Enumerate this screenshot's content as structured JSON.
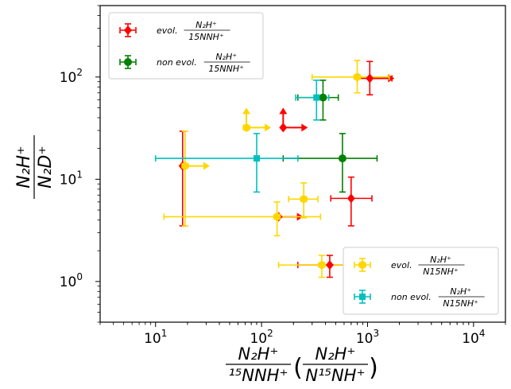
{
  "chart_data": {
    "type": "scatter",
    "x_scale": "log",
    "y_scale": "log",
    "xlim": [
      3,
      20000
    ],
    "ylim": [
      0.4,
      500
    ],
    "grid": false,
    "colors": {
      "evol_n2h": "#ff0000",
      "nonevol_n2h": "#008000",
      "evol_n15nh": "#ffd700",
      "nonevol_n15nh": "#00bfbf"
    },
    "x_ticks": [
      {
        "value": 10,
        "base": "10",
        "exp": "1"
      },
      {
        "value": 100,
        "base": "10",
        "exp": "2"
      },
      {
        "value": 1000,
        "base": "10",
        "exp": "3"
      },
      {
        "value": 10000,
        "base": "10",
        "exp": "4"
      }
    ],
    "y_ticks": [
      {
        "value": 1,
        "base": "10",
        "exp": "0"
      },
      {
        "value": 10,
        "base": "10",
        "exp": "1"
      },
      {
        "value": 100,
        "base": "10",
        "exp": "2"
      }
    ],
    "xlabel": {
      "frac1_num": "N₂H⁺",
      "frac1_den": "¹⁵NNH⁺",
      "lparen": "(",
      "frac2_num": "N₂H⁺",
      "frac2_den": "N¹⁵NH⁺",
      "rparen": ")"
    },
    "ylabel": {
      "num": "N₂H⁺",
      "den": "N₂D⁺"
    },
    "legend_upper": [
      {
        "key": "evol_n2h",
        "prefix": "evol.",
        "num": "N₂H⁺",
        "den": "15NNH⁺"
      },
      {
        "key": "nonevol_n2h",
        "prefix": "non evol.",
        "num": "N₂H⁺",
        "den": "15NNH⁺"
      }
    ],
    "legend_lower": [
      {
        "key": "evol_n15nh",
        "prefix": "evol.",
        "num": "N₂H⁺",
        "den": "N15NH⁺"
      },
      {
        "key": "nonevol_n15nh",
        "prefix": "non evol.",
        "num": "N₂H⁺",
        "den": "N15NH⁺"
      }
    ],
    "series": [
      {
        "key": "evol_n2h",
        "marker": "diamond",
        "points": [
          {
            "x": 1050,
            "y": 97,
            "xerr": [
              250,
              650
            ],
            "yerr": [
              30,
              45
            ],
            "arrow_x": true
          },
          {
            "x": 160,
            "y": 32,
            "arrow_x": true,
            "arrow_y": true
          },
          {
            "x": 18,
            "y": 13.5,
            "yerr": [
              10,
              16
            ]
          },
          {
            "x": 700,
            "y": 6.5,
            "xerr": [
              250,
              400
            ],
            "yerr": [
              3,
              4
            ]
          },
          {
            "x": 145,
            "y": 4.3,
            "arrow_x": true
          },
          {
            "x": 440,
            "y": 1.45,
            "xerr": [
              220,
              300
            ],
            "yerr": [
              0.35,
              0.35
            ]
          }
        ]
      },
      {
        "key": "nonevol_n2h",
        "marker": "circle",
        "points": [
          {
            "x": 380,
            "y": 63,
            "xerr": [
              160,
              150
            ],
            "yerr": [
              25,
              30
            ]
          },
          {
            "x": 580,
            "y": 16,
            "xerr": [
              420,
              650
            ],
            "yerr": [
              8.5,
              12
            ]
          }
        ]
      },
      {
        "key": "evol_n15nh",
        "marker": "hexagon",
        "points": [
          {
            "x": 800,
            "y": 100,
            "xerr": [
              500,
              800
            ],
            "yerr": [
              30,
              45
            ]
          },
          {
            "x": 72,
            "y": 32,
            "arrow_x": true,
            "arrow_y": true
          },
          {
            "x": 19,
            "y": 13.5,
            "arrow_x": true,
            "yerr": [
              10,
              16
            ]
          },
          {
            "x": 250,
            "y": 6.4,
            "xerr": [
              70,
              90
            ],
            "yerr": [
              2.2,
              2.8
            ]
          },
          {
            "x": 140,
            "y": 4.3,
            "xerr": [
              128,
              220
            ],
            "yerr": [
              1.5,
              1.7
            ]
          },
          {
            "x": 370,
            "y": 1.45,
            "xerr": [
              225,
              330
            ],
            "yerr": [
              0.35,
              0.35
            ]
          }
        ]
      },
      {
        "key": "nonevol_n15nh",
        "marker": "square",
        "points": [
          {
            "x": 330,
            "y": 63,
            "xerr": [
              120,
              100
            ],
            "yerr": [
              25,
              30
            ]
          },
          {
            "x": 90,
            "y": 16,
            "xerr": [
              80,
              130
            ],
            "yerr": [
              8.5,
              12
            ]
          }
        ]
      }
    ]
  }
}
